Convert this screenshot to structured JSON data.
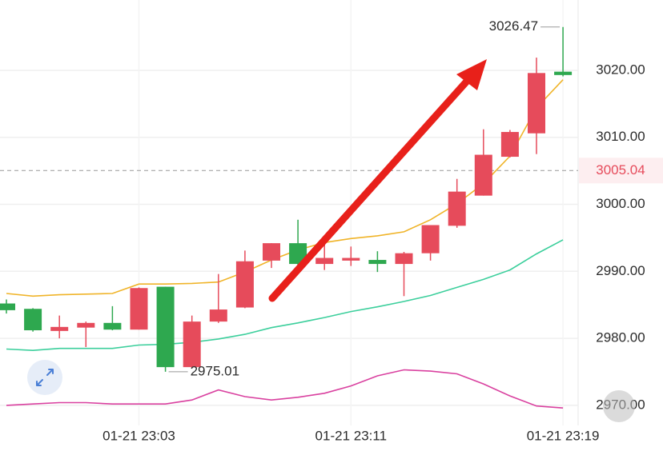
{
  "chart_data": {
    "type": "candlestick",
    "categories": [
      null,
      null,
      null,
      null,
      null,
      "01-21 23:03",
      null,
      null,
      null,
      null,
      null,
      null,
      null,
      "01-21 23:11",
      null,
      null,
      null,
      null,
      null,
      null,
      null,
      "01-21 23:19"
    ],
    "series": [
      {
        "open": [
          2985.2,
          2984.4,
          2981.1,
          2981.6,
          2982.3,
          2981.3,
          2987.7,
          2975.7,
          2982.5,
          2984.6,
          2991.6,
          2994.2,
          2991.1,
          2991.6,
          2991.7,
          2991.1,
          2992.7,
          2996.8,
          3001.3,
          3007.1,
          3010.6,
          3019.8
        ],
        "high": [
          2985.8,
          2984.5,
          2983.4,
          2982.5,
          2984.8,
          2987.6,
          2987.7,
          2983.4,
          2989.6,
          2993.1,
          2994.2,
          2997.7,
          2994.7,
          2993.7,
          2993.0,
          2992.9,
          2996.9,
          3003.8,
          3011.2,
          3011.1,
          3021.9,
          3026.47
        ],
        "low": [
          2983.7,
          2981.0,
          2980.0,
          2978.7,
          2981.2,
          2981.3,
          2975.01,
          2975.6,
          2982.3,
          2984.5,
          2990.5,
          2990.8,
          2990.2,
          2990.8,
          2989.9,
          2986.3,
          2991.6,
          2996.5,
          3001.3,
          3007.0,
          3007.5,
          3019.1
        ],
        "close": [
          2984.2,
          2981.2,
          2981.7,
          2982.3,
          2981.3,
          2987.5,
          2975.7,
          2982.5,
          2984.3,
          2991.5,
          2994.2,
          2991.1,
          2992.0,
          2992.0,
          2991.1,
          2992.7,
          2996.9,
          3001.9,
          3007.4,
          3010.8,
          3019.6,
          3019.3
        ]
      }
    ],
    "up_color": "#e64b5b",
    "down_color": "#2ea84f",
    "lines": [
      {
        "color": "#f0b429",
        "values": [
          2986.7,
          2986.3,
          2986.5,
          2986.6,
          2986.7,
          2988.1,
          2988.1,
          2988.2,
          2988.4,
          2989.9,
          2991.7,
          2993.2,
          2994.3,
          2994.9,
          2995.3,
          2995.9,
          2997.7,
          3000.1,
          3003.1,
          3007.2,
          3014.4,
          3018.6
        ]
      },
      {
        "color": "#3ccf9c",
        "values": [
          2978.4,
          2978.2,
          2978.5,
          2978.5,
          2978.5,
          2979.0,
          2979.1,
          2979.4,
          2979.9,
          2980.6,
          2981.6,
          2982.3,
          2983.1,
          2984.0,
          2984.7,
          2985.5,
          2986.4,
          2987.6,
          2988.8,
          2990.2,
          2992.6,
          2994.7
        ]
      },
      {
        "color": "#d9409f",
        "values": [
          2970.0,
          2970.2,
          2970.4,
          2970.4,
          2970.2,
          2970.2,
          2970.2,
          2970.8,
          2972.3,
          2971.3,
          2970.8,
          2971.2,
          2971.8,
          2972.9,
          2974.4,
          2975.3,
          2975.1,
          2974.7,
          2973.2,
          2971.4,
          2969.9,
          2969.6
        ]
      }
    ],
    "current_price": 3005.04,
    "current_price_color": "#e64b5b",
    "ylim": [
      2967,
      3030.5
    ],
    "yticks": [
      {
        "value": 2970,
        "label": "2970.00"
      },
      {
        "value": 2980,
        "label": "2980.00"
      },
      {
        "value": 2990,
        "label": "2990.00"
      },
      {
        "value": 3000,
        "label": "3000.00"
      },
      {
        "value": 3010,
        "label": "3010.00"
      },
      {
        "value": 3020,
        "label": "3020.00"
      }
    ],
    "grid": true
  }
}
